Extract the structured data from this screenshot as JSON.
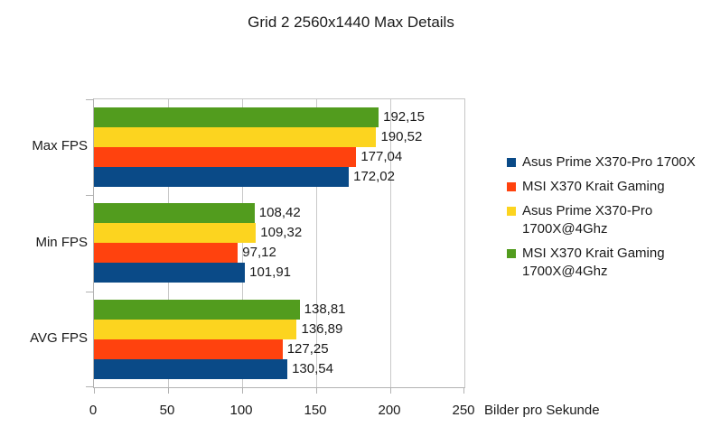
{
  "chart_data": {
    "type": "bar",
    "orientation": "horizontal",
    "title": "Grid 2 2560x1440 Max Details",
    "categories": [
      "Max FPS",
      "Min FPS",
      "AVG FPS"
    ],
    "series": [
      {
        "name": "Asus Prime X370-Pro 1700X",
        "color": "#0a4a87",
        "values": [
          172.02,
          101.91,
          130.54
        ],
        "labels": [
          "172,02",
          "101,91",
          "130,54"
        ]
      },
      {
        "name": "MSI X370 Krait Gaming",
        "color": "#ff420e",
        "values": [
          177.04,
          97.12,
          127.25
        ],
        "labels": [
          "177,04",
          "97,12",
          "127,25"
        ]
      },
      {
        "name": "Asus Prime X370-Pro 1700X@4Ghz",
        "color": "#fcd41f",
        "values": [
          190.52,
          109.32,
          136.89
        ],
        "labels": [
          "190,52",
          "109,32",
          "136,89"
        ]
      },
      {
        "name": "MSI X370 Krait Gaming 1700X@4Ghz",
        "color": "#529c1e",
        "values": [
          192.15,
          108.42,
          138.81
        ],
        "labels": [
          "192,15",
          "108,42",
          "138,81"
        ]
      }
    ],
    "bar_order_top_to_bottom": [
      "MSI X370 Krait Gaming 1700X@4Ghz",
      "Asus Prime X370-Pro 1700X@4Ghz",
      "MSI X370 Krait Gaming",
      "Asus Prime X370-Pro 1700X"
    ],
    "xlabel": "Bilder pro Sekunde",
    "ylabel": "",
    "xlim": [
      0,
      250
    ],
    "xticks": [
      0,
      50,
      100,
      150,
      200,
      250
    ],
    "xtick_labels": [
      "0",
      "50",
      "100",
      "150",
      "200",
      "250"
    ],
    "grid": "vertical gridlines on, plot border on",
    "legend_position": "right",
    "legend": [
      {
        "color": "#0a4a87",
        "lines": [
          "Asus Prime X370-Pro 1700X"
        ]
      },
      {
        "color": "#ff420e",
        "lines": [
          "MSI X370 Krait Gaming"
        ]
      },
      {
        "color": "#fcd41f",
        "lines": [
          "Asus Prime X370-Pro",
          "1700X@4Ghz"
        ]
      },
      {
        "color": "#529c1e",
        "lines": [
          "MSI X370 Krait Gaming",
          "1700X@4Ghz"
        ]
      }
    ]
  }
}
